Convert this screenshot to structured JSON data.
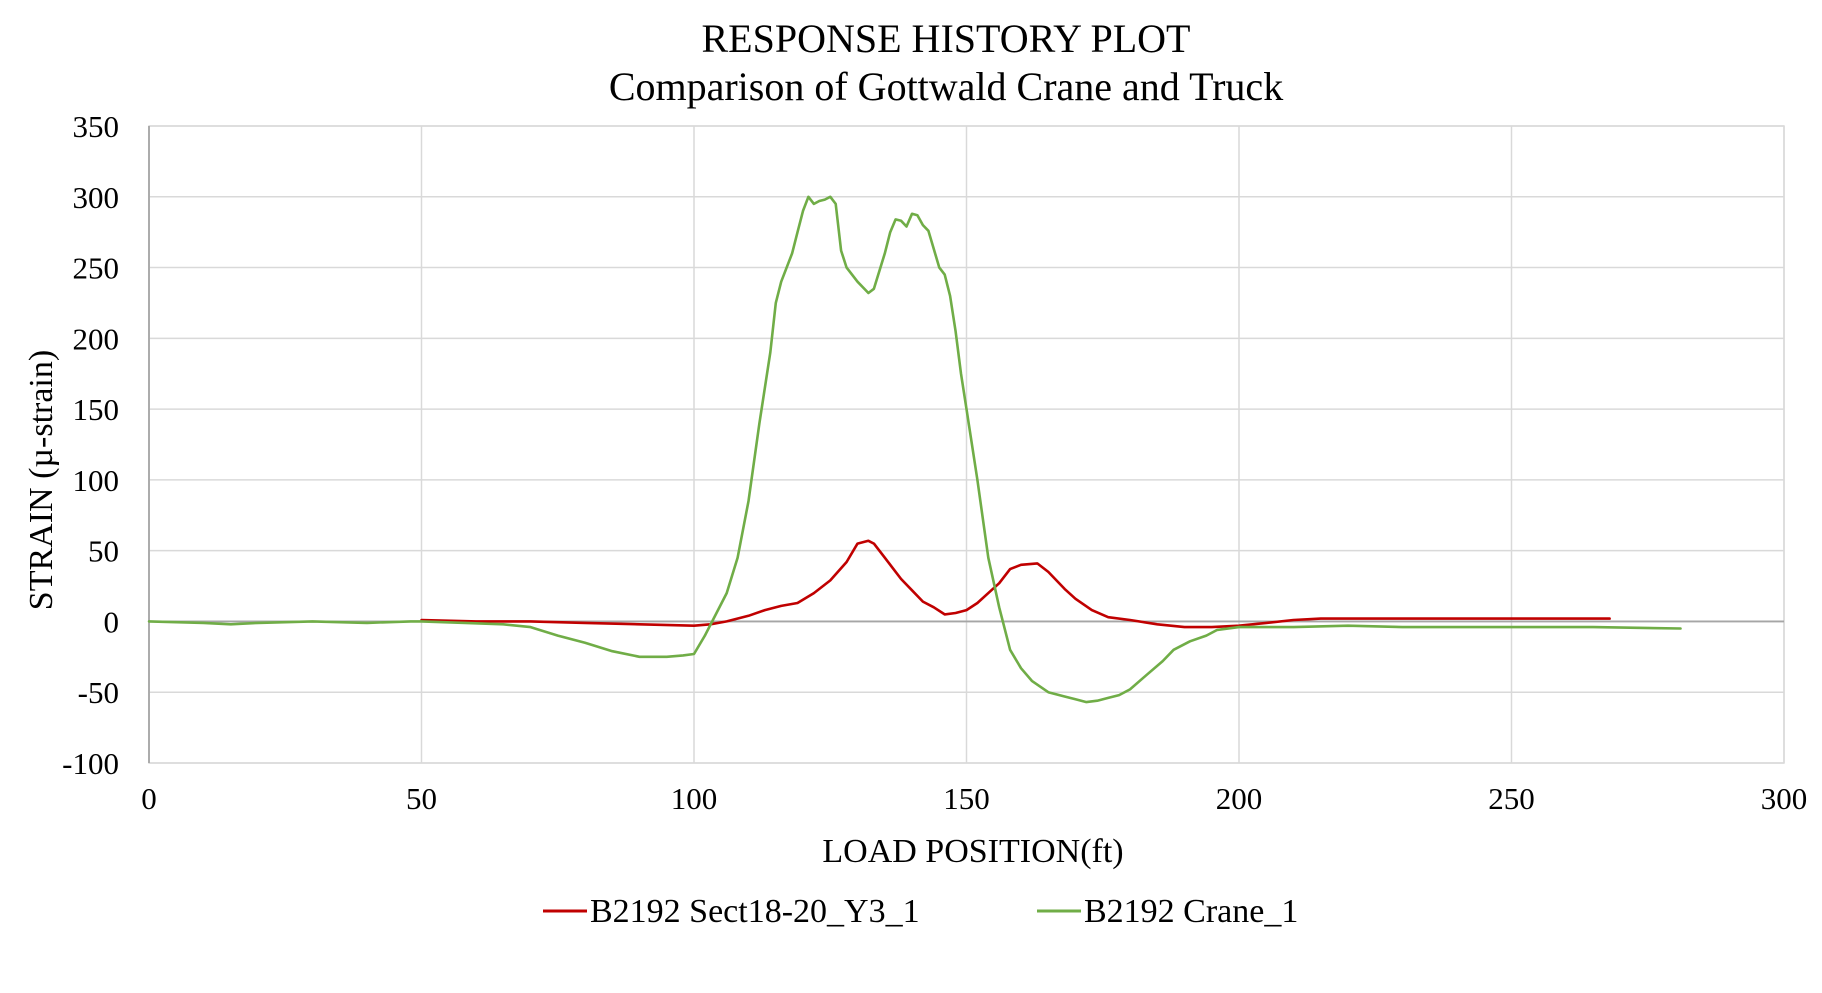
{
  "chart_data": {
    "type": "line",
    "title": "RESPONSE HISTORY PLOT",
    "subtitle": "Comparison of Gottwald Crane and Truck",
    "xlabel": "LOAD POSITION(ft)",
    "ylabel": "STRAIN (µ-strain)",
    "xlim": [
      0,
      300
    ],
    "ylim": [
      -100,
      350
    ],
    "x_ticks": [
      0,
      50,
      100,
      150,
      200,
      250,
      300
    ],
    "y_ticks": [
      -100,
      -50,
      0,
      50,
      100,
      150,
      200,
      250,
      300,
      350
    ],
    "grid": true,
    "legend_position": "bottom",
    "series": [
      {
        "name": "B2192 Sect18-20_Y3_1",
        "color": "#c00000",
        "points": [
          [
            50,
            1
          ],
          [
            60,
            0
          ],
          [
            70,
            0
          ],
          [
            80,
            -1
          ],
          [
            90,
            -2
          ],
          [
            100,
            -3
          ],
          [
            103,
            -2
          ],
          [
            106,
            0
          ],
          [
            110,
            4
          ],
          [
            113,
            8
          ],
          [
            116,
            11
          ],
          [
            119,
            13
          ],
          [
            122,
            20
          ],
          [
            125,
            29
          ],
          [
            128,
            42
          ],
          [
            130,
            55
          ],
          [
            132,
            57
          ],
          [
            133,
            55
          ],
          [
            135,
            45
          ],
          [
            138,
            30
          ],
          [
            140,
            22
          ],
          [
            142,
            14
          ],
          [
            144,
            10
          ],
          [
            146,
            5
          ],
          [
            148,
            6
          ],
          [
            150,
            8
          ],
          [
            152,
            13
          ],
          [
            154,
            20
          ],
          [
            156,
            27
          ],
          [
            158,
            37
          ],
          [
            160,
            40
          ],
          [
            163,
            41
          ],
          [
            165,
            35
          ],
          [
            168,
            23
          ],
          [
            170,
            16
          ],
          [
            173,
            8
          ],
          [
            176,
            3
          ],
          [
            180,
            1
          ],
          [
            185,
            -2
          ],
          [
            190,
            -4
          ],
          [
            195,
            -4
          ],
          [
            200,
            -3
          ],
          [
            205,
            -1
          ],
          [
            210,
            1
          ],
          [
            215,
            2
          ],
          [
            230,
            2
          ],
          [
            250,
            2
          ],
          [
            268,
            2
          ]
        ]
      },
      {
        "name": "B2192 Crane_1",
        "color": "#70ad47",
        "points": [
          [
            0,
            0
          ],
          [
            10,
            -1
          ],
          [
            15,
            -2
          ],
          [
            20,
            -1
          ],
          [
            30,
            0
          ],
          [
            40,
            -1
          ],
          [
            48,
            0
          ],
          [
            50,
            0
          ],
          [
            58,
            -1
          ],
          [
            65,
            -2
          ],
          [
            70,
            -4
          ],
          [
            75,
            -10
          ],
          [
            80,
            -15
          ],
          [
            85,
            -21
          ],
          [
            90,
            -25
          ],
          [
            95,
            -25
          ],
          [
            98,
            -24
          ],
          [
            100,
            -23
          ],
          [
            102,
            -10
          ],
          [
            104,
            5
          ],
          [
            106,
            20
          ],
          [
            108,
            45
          ],
          [
            110,
            85
          ],
          [
            112,
            140
          ],
          [
            114,
            190
          ],
          [
            115,
            225
          ],
          [
            116,
            240
          ],
          [
            118,
            260
          ],
          [
            119,
            275
          ],
          [
            120,
            290
          ],
          [
            121,
            300
          ],
          [
            122,
            295
          ],
          [
            123,
            297
          ],
          [
            124,
            298
          ],
          [
            125,
            300
          ],
          [
            126,
            295
          ],
          [
            127,
            262
          ],
          [
            128,
            250
          ],
          [
            130,
            240
          ],
          [
            132,
            232
          ],
          [
            133,
            235
          ],
          [
            135,
            260
          ],
          [
            136,
            275
          ],
          [
            137,
            284
          ],
          [
            138,
            283
          ],
          [
            139,
            279
          ],
          [
            140,
            288
          ],
          [
            141,
            287
          ],
          [
            142,
            280
          ],
          [
            143,
            276
          ],
          [
            145,
            250
          ],
          [
            146,
            245
          ],
          [
            147,
            230
          ],
          [
            148,
            205
          ],
          [
            149,
            175
          ],
          [
            150,
            150
          ],
          [
            152,
            100
          ],
          [
            154,
            45
          ],
          [
            156,
            10
          ],
          [
            158,
            -20
          ],
          [
            160,
            -33
          ],
          [
            162,
            -42
          ],
          [
            165,
            -50
          ],
          [
            168,
            -53
          ],
          [
            170,
            -55
          ],
          [
            172,
            -57
          ],
          [
            174,
            -56
          ],
          [
            176,
            -54
          ],
          [
            178,
            -52
          ],
          [
            180,
            -48
          ],
          [
            183,
            -38
          ],
          [
            186,
            -28
          ],
          [
            188,
            -20
          ],
          [
            191,
            -14
          ],
          [
            194,
            -10
          ],
          [
            196,
            -6
          ],
          [
            200,
            -4
          ],
          [
            210,
            -4
          ],
          [
            220,
            -3
          ],
          [
            230,
            -4
          ],
          [
            250,
            -4
          ],
          [
            265,
            -4
          ],
          [
            281,
            -5
          ]
        ]
      }
    ]
  }
}
